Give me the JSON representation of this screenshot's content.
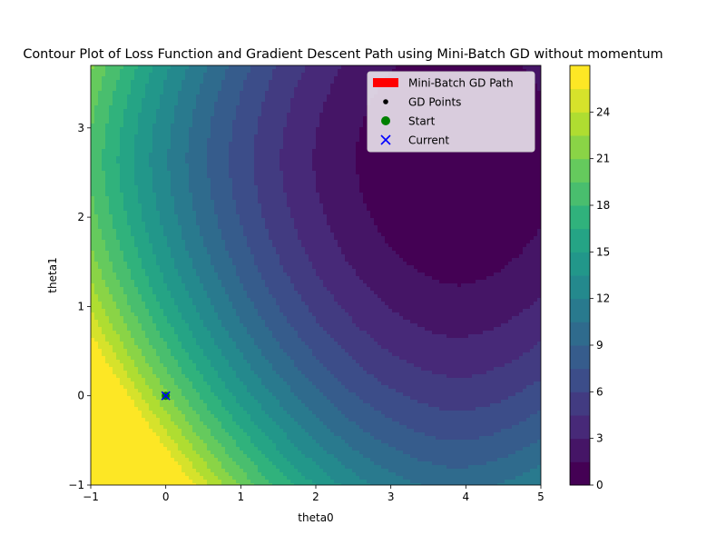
{
  "chart_data": {
    "type": "contourf",
    "title": "Contour Plot of Loss Function and Gradient Descent Path using Mini-Batch GD without momentum",
    "xlabel": "theta0",
    "ylabel": "theta1",
    "xlim": [
      -1,
      5
    ],
    "ylim": [
      -1,
      3.7
    ],
    "x_ticks": [
      -1,
      0,
      1,
      2,
      3,
      4,
      5
    ],
    "y_ticks": [
      -1,
      0,
      1,
      2,
      3
    ],
    "colormap": "viridis",
    "colorbar_range": [
      0,
      27
    ],
    "colorbar_ticks": [
      0,
      3,
      6,
      9,
      12,
      15,
      18,
      21,
      24
    ],
    "contour_levels": [
      0,
      1.5,
      3,
      4.5,
      6,
      7.5,
      9,
      10.5,
      12,
      13.5,
      15,
      16.5,
      18,
      19.5,
      21,
      22.5,
      24,
      25.5,
      27
    ],
    "minimum": {
      "theta0": 3.9,
      "theta1": 2.65
    },
    "grid": false,
    "legend_position": "upper right",
    "legend": [
      {
        "label": "Mini-Batch GD Path",
        "marker": "line",
        "color": "#ff0000"
      },
      {
        "label": "GD Points",
        "marker": "dot",
        "color": "#000000"
      },
      {
        "label": "Start",
        "marker": "circle",
        "color": "#008000"
      },
      {
        "label": "Current",
        "marker": "x",
        "color": "#0000ff"
      }
    ],
    "series": [
      {
        "name": "Mini-Batch GD Path",
        "x": [
          0
        ],
        "y": [
          0
        ],
        "color": "#ff0000"
      },
      {
        "name": "GD Points",
        "x": [
          0
        ],
        "y": [
          0
        ],
        "color": "#000000"
      },
      {
        "name": "Start",
        "x": [
          0
        ],
        "y": [
          0
        ],
        "color": "#008000"
      },
      {
        "name": "Current",
        "x": [
          0
        ],
        "y": [
          0
        ],
        "color": "#0000ff"
      }
    ]
  }
}
